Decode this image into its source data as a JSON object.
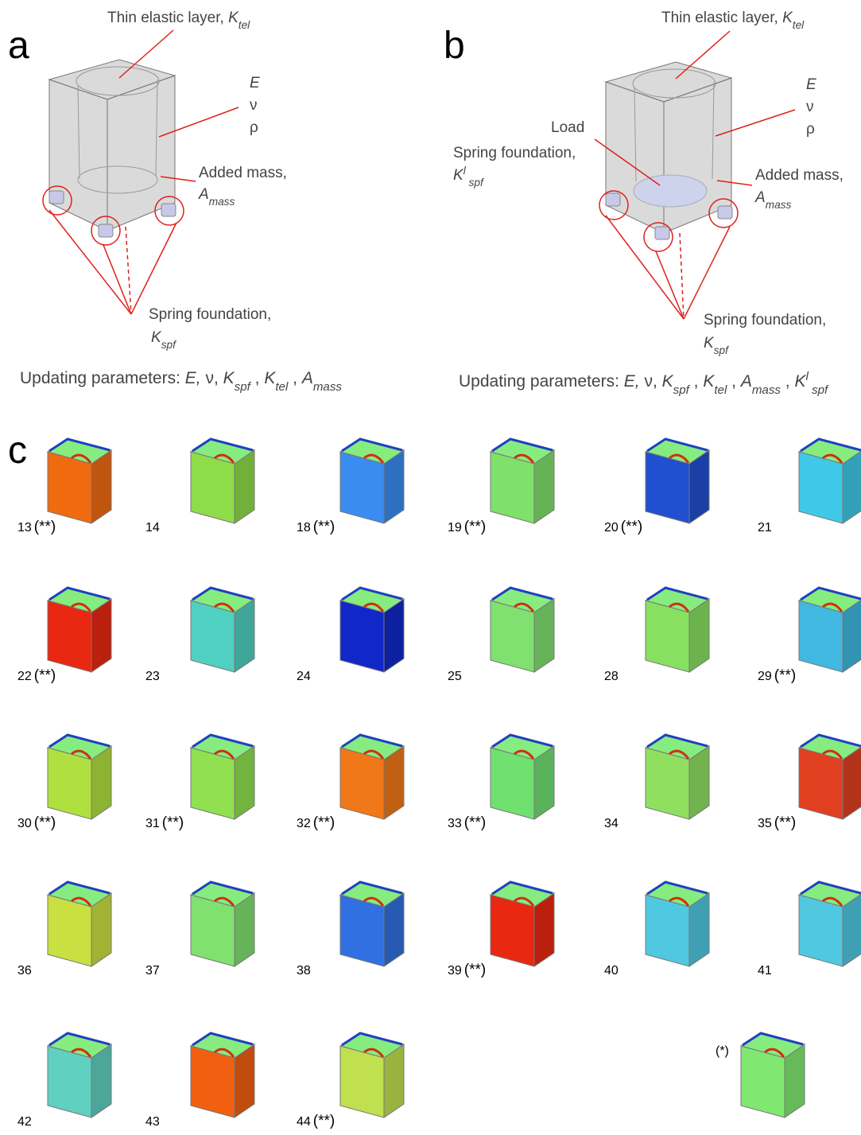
{
  "panel_a": {
    "label": "a",
    "thin_layer": [
      {
        "text": "Thin elastic layer, ",
        "style": "normal"
      },
      {
        "text": "K",
        "style": "italic"
      },
      {
        "text": "tel",
        "style": "sub"
      }
    ],
    "E": [
      {
        "text": "E",
        "style": "italic"
      }
    ],
    "nu": [
      {
        "text": "ν",
        "style": "normal"
      }
    ],
    "rho": [
      {
        "text": "ρ",
        "style": "normal"
      }
    ],
    "added_mass": [
      {
        "text": "Added mass,",
        "style": "normal"
      }
    ],
    "added_mass_symbol": [
      {
        "text": "A",
        "style": "italic"
      },
      {
        "text": "mass",
        "style": "sub"
      }
    ],
    "spring": [
      {
        "text": "Spring foundation,",
        "style": "normal"
      }
    ],
    "spring_symbol": [
      {
        "text": "K",
        "style": "italic"
      },
      {
        "text": "spf",
        "style": "sub"
      }
    ],
    "updating": [
      {
        "text": "Updating parameters: ",
        "style": "normal"
      },
      {
        "text": "E,",
        "style": "italic"
      },
      {
        "text": " ν, ",
        "style": "normal"
      },
      {
        "text": "K",
        "style": "italic"
      },
      {
        "text": "spf",
        "style": "sub"
      },
      {
        "text": " , ",
        "style": "normal"
      },
      {
        "text": "K",
        "style": "italic"
      },
      {
        "text": "tel",
        "style": "sub"
      },
      {
        "text": " , ",
        "style": "normal"
      },
      {
        "text": "A",
        "style": "italic"
      },
      {
        "text": "mass",
        "style": "sub"
      }
    ]
  },
  "panel_b": {
    "label": "b",
    "thin_layer": [
      {
        "text": "Thin elastic layer, ",
        "style": "normal"
      },
      {
        "text": "K",
        "style": "italic"
      },
      {
        "text": "tel",
        "style": "sub"
      }
    ],
    "E": [
      {
        "text": "E",
        "style": "italic"
      }
    ],
    "nu": [
      {
        "text": "ν",
        "style": "normal"
      }
    ],
    "rho": [
      {
        "text": "ρ",
        "style": "normal"
      }
    ],
    "load": [
      {
        "text": "Load",
        "style": "normal"
      }
    ],
    "spring_load": [
      {
        "text": "Spring foundation,",
        "style": "normal"
      }
    ],
    "spring_load_symbol": [
      {
        "text": "K",
        "style": "italic"
      },
      {
        "text": "l",
        "style": "sup"
      },
      {
        "text": " spf",
        "style": "sub"
      }
    ],
    "added_mass": [
      {
        "text": "Added mass,",
        "style": "normal"
      }
    ],
    "added_mass_symbol": [
      {
        "text": "A",
        "style": "italic"
      },
      {
        "text": "mass",
        "style": "sub"
      }
    ],
    "spring": [
      {
        "text": "Spring foundation,",
        "style": "normal"
      }
    ],
    "spring_symbol": [
      {
        "text": "K",
        "style": "italic"
      },
      {
        "text": "spf",
        "style": "sub"
      }
    ],
    "updating": [
      {
        "text": "Updating parameters: ",
        "style": "normal"
      },
      {
        "text": "E,",
        "style": "italic"
      },
      {
        "text": " ν, ",
        "style": "normal"
      },
      {
        "text": "K",
        "style": "italic"
      },
      {
        "text": "spf",
        "style": "sub"
      },
      {
        "text": " , ",
        "style": "normal"
      },
      {
        "text": "K",
        "style": "italic"
      },
      {
        "text": "tel",
        "style": "sub"
      },
      {
        "text": " , ",
        "style": "normal"
      },
      {
        "text": "A",
        "style": "italic"
      },
      {
        "text": "mass",
        "style": "sub"
      },
      {
        "text": " , ",
        "style": "normal"
      },
      {
        "text": "K",
        "style": "italic"
      },
      {
        "text": "l",
        "style": "sup"
      },
      {
        "text": " spf",
        "style": "sub"
      }
    ]
  },
  "panel_c": {
    "label": "c",
    "modes": [
      {
        "number": "13",
        "mark": "(**)",
        "color": "#f06a10"
      },
      {
        "number": "14",
        "color": "#8fdc4a"
      },
      {
        "number": "18",
        "mark": "(**)",
        "color": "#3a8cf0"
      },
      {
        "number": "19",
        "mark": "(**)",
        "color": "#7fe06a"
      },
      {
        "number": "20",
        "mark": "(**)",
        "color": "#2050d0"
      },
      {
        "number": "21",
        "color": "#40c8e8"
      },
      {
        "number": "22",
        "mark": "(**)",
        "color": "#e82810"
      },
      {
        "number": "23",
        "color": "#50d0c0"
      },
      {
        "number": "24",
        "color": "#1028c8"
      },
      {
        "number": "25",
        "color": "#80e070"
      },
      {
        "number": "28",
        "color": "#88e060"
      },
      {
        "number": "29",
        "mark": "(**)",
        "color": "#40b8e0"
      },
      {
        "number": "30",
        "mark": "(**)",
        "color": "#b0e040"
      },
      {
        "number": "31",
        "mark": "(**)",
        "color": "#90e050"
      },
      {
        "number": "32",
        "mark": "(**)",
        "color": "#f07818"
      },
      {
        "number": "33",
        "mark": "(**)",
        "color": "#70e070"
      },
      {
        "number": "34",
        "color": "#90e060"
      },
      {
        "number": "35",
        "mark": "(**)",
        "color": "#e04020"
      },
      {
        "number": "36",
        "color": "#c8e040"
      },
      {
        "number": "37",
        "color": "#80e070"
      },
      {
        "number": "38",
        "color": "#3070e0"
      },
      {
        "number": "39",
        "mark": "(**)",
        "color": "#e82810"
      },
      {
        "number": "40",
        "color": "#50c8e0"
      },
      {
        "number": "41",
        "color": "#50c8e0"
      },
      {
        "number": "42",
        "color": "#60d0c0"
      },
      {
        "number": "43",
        "color": "#f06010"
      },
      {
        "number": "44",
        "mark": "(**)",
        "color": "#c0e050"
      }
    ],
    "reference": {
      "label": "(*)",
      "color": "#80e870"
    }
  }
}
